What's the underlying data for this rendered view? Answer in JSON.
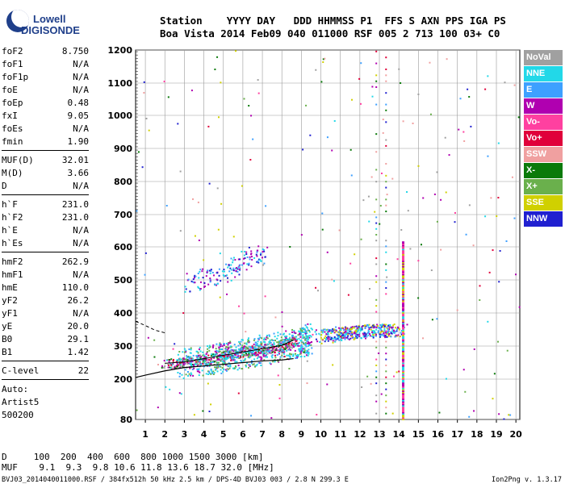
{
  "logo": {
    "line1": "Lowell",
    "line2": "DIGISONDE"
  },
  "header": {
    "row1": "Station    YYYY DAY   DDD HHMMSS P1  FFS S AXN PPS IGA PS",
    "row2": "Boa Vista 2014 Feb09 040 011000 RSF 005 2 713 100 03+ C0"
  },
  "params": [
    {
      "label": "foF2",
      "value": "8.750"
    },
    {
      "label": "foF1",
      "value": "N/A"
    },
    {
      "label": "foF1p",
      "value": "N/A"
    },
    {
      "label": "foE",
      "value": "N/A"
    },
    {
      "label": "foEp",
      "value": "0.48"
    },
    {
      "label": "fxI",
      "value": "9.05"
    },
    {
      "label": "foEs",
      "value": "N/A"
    },
    {
      "label": "fmin",
      "value": "1.90"
    },
    {
      "label": "MUF(D)",
      "value": "32.01"
    },
    {
      "label": "M(D)",
      "value": "3.66"
    },
    {
      "label": "D",
      "value": "N/A"
    },
    {
      "label": "h`F",
      "value": "231.0"
    },
    {
      "label": "h`F2",
      "value": "231.0"
    },
    {
      "label": "h`E",
      "value": "N/A"
    },
    {
      "label": "h`Es",
      "value": "N/A"
    },
    {
      "label": "hmF2",
      "value": "262.9"
    },
    {
      "label": "hmF1",
      "value": "N/A"
    },
    {
      "label": "hmE",
      "value": "110.0"
    },
    {
      "label": "yF2",
      "value": "26.2"
    },
    {
      "label": "yF1",
      "value": "N/A"
    },
    {
      "label": "yE",
      "value": "20.0"
    },
    {
      "label": "B0",
      "value": "29.1"
    },
    {
      "label": "B1",
      "value": "1.42"
    },
    {
      "label": "C-level",
      "value": "22"
    }
  ],
  "auto": {
    "line1": "Auto:",
    "line2": "Artist5",
    "line3": "500200"
  },
  "legend": [
    {
      "label": "NoVal",
      "color": "#a0a0a0"
    },
    {
      "label": "NNE",
      "color": "#22d8e8"
    },
    {
      "label": "E",
      "color": "#3da0ff"
    },
    {
      "label": "W",
      "color": "#b000b0"
    },
    {
      "label": "Vo-",
      "color": "#ff40a0"
    },
    {
      "label": "Vo+",
      "color": "#e0003a"
    },
    {
      "label": "SSW",
      "color": "#f0a0a0"
    },
    {
      "label": "X-",
      "color": "#0a7a0a"
    },
    {
      "label": "X+",
      "color": "#6ab04c"
    },
    {
      "label": "SSE",
      "color": "#d0d000"
    },
    {
      "label": "NNW",
      "color": "#2020d0"
    }
  ],
  "footer": {
    "line1": "D     100  200  400  600  800 1000 1500 3000 [km]",
    "line2": "MUF    9.1  9.3  9.8 10.6 11.8 13.6 18.7 32.0 [MHz]"
  },
  "status": "BVJ03_2014040011000.RSF / 384fx512h 50 kHz 2.5 km / DPS-4D BVJ03 003 / 2.8 N 299.3 E",
  "version": "Ion2Png v. 1.3.17",
  "chart_data": {
    "type": "scatter",
    "x_ticks": [
      "1",
      "2",
      "3",
      "4",
      "5",
      "6",
      "7",
      "8",
      "9",
      "10",
      "11",
      "12",
      "13",
      "14",
      "15",
      "16",
      "17",
      "18",
      "19",
      "20"
    ],
    "y_ticks": [
      "80",
      "200",
      "300",
      "400",
      "500",
      "600",
      "700",
      "800",
      "900",
      "1000",
      "1100",
      "1200"
    ],
    "xlim": [
      0.5,
      20.2
    ],
    "ylim": [
      80,
      1200
    ],
    "grid": true,
    "legend_position": "right",
    "traces": [
      {
        "name": "F-layer O-trace",
        "points": [
          [
            2.0,
            248
          ],
          [
            3,
            252
          ],
          [
            4,
            262
          ],
          [
            5,
            272
          ],
          [
            6,
            282
          ],
          [
            7,
            292
          ],
          [
            8,
            302
          ],
          [
            8.6,
            318
          ]
        ]
      },
      {
        "name": "F-layer X-trace",
        "points": [
          [
            2.6,
            248
          ],
          [
            4,
            255
          ],
          [
            5,
            268
          ],
          [
            6,
            278
          ],
          [
            7,
            290
          ],
          [
            8,
            302
          ],
          [
            9,
            315
          ],
          [
            9.3,
            325
          ]
        ]
      },
      {
        "name": "Multiple (2F)",
        "points": [
          [
            3,
            490
          ],
          [
            4,
            505
          ],
          [
            5,
            520
          ],
          [
            5.5,
            540
          ],
          [
            6,
            560
          ],
          [
            6.5,
            575
          ],
          [
            7,
            580
          ]
        ]
      },
      {
        "name": "Es/ spread",
        "points": [
          [
            10,
            330
          ],
          [
            11,
            340
          ],
          [
            12,
            345
          ],
          [
            13,
            348
          ],
          [
            14,
            350
          ]
        ]
      }
    ],
    "profile_line": {
      "points": [
        [
          0.5,
          205
        ],
        [
          1,
          212
        ],
        [
          2,
          225
        ],
        [
          3,
          235
        ],
        [
          4,
          240
        ],
        [
          5,
          245
        ],
        [
          6,
          250
        ],
        [
          7,
          255
        ],
        [
          8,
          258
        ],
        [
          8.6,
          262
        ]
      ]
    },
    "profile_dash": {
      "points": [
        [
          0.5,
          375
        ],
        [
          1,
          362
        ],
        [
          1.5,
          348
        ],
        [
          2,
          340
        ]
      ]
    },
    "marker_freq": 14.2
  }
}
